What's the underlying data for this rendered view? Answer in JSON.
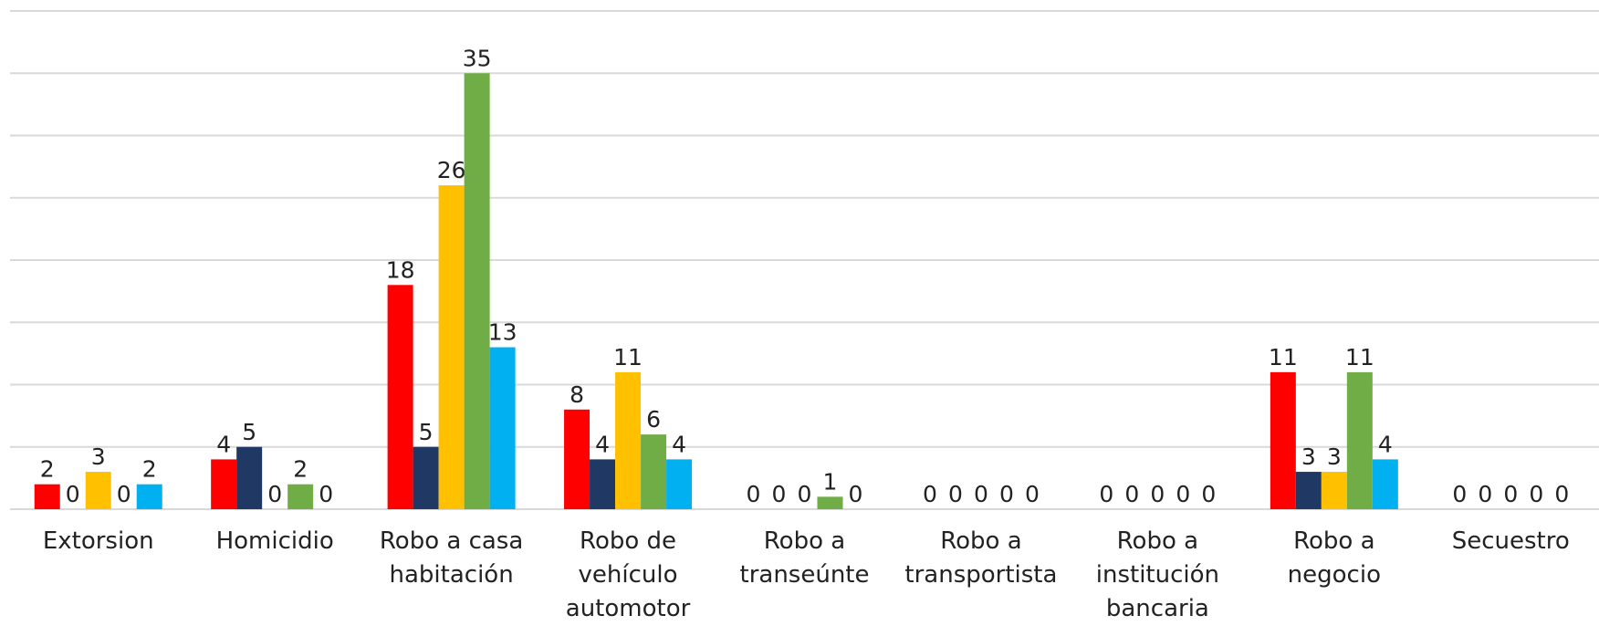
{
  "chart_data": {
    "type": "bar",
    "categories": [
      "Extorsion",
      "Homicidio",
      "Robo a casa habitación",
      "Robo de vehículo automotor",
      "Robo a transeúnte",
      "Robo a transportista",
      "Robo a institución bancaria",
      "Robo a negocio",
      "Secuestro"
    ],
    "series": [
      {
        "color": "#ff0000",
        "values": [
          2,
          4,
          18,
          8,
          0,
          0,
          0,
          11,
          0
        ]
      },
      {
        "color": "#203864",
        "values": [
          0,
          5,
          5,
          4,
          0,
          0,
          0,
          3,
          0
        ]
      },
      {
        "color": "#ffc000",
        "values": [
          3,
          0,
          26,
          11,
          0,
          0,
          0,
          3,
          0
        ]
      },
      {
        "color": "#70ad47",
        "values": [
          0,
          2,
          35,
          6,
          1,
          0,
          0,
          11,
          0
        ]
      },
      {
        "color": "#00b0f0",
        "values": [
          2,
          0,
          13,
          4,
          0,
          0,
          0,
          4,
          0
        ]
      }
    ],
    "ylim": [
      0,
      40
    ],
    "yticks": [
      0,
      5,
      10,
      15,
      20,
      25,
      30,
      35,
      40
    ],
    "grid": true
  }
}
